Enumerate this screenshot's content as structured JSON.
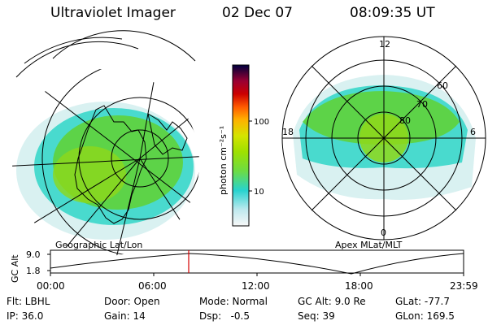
{
  "header": {
    "instrument": "Ultraviolet Imager",
    "date": "02 Dec 07",
    "time": "08:09:35 UT"
  },
  "geo_map": {
    "caption": "Geographic Lat/Lon"
  },
  "polar_map": {
    "caption": "Apex MLat/MLT",
    "mlt_labels": [
      "12",
      "18",
      "6",
      "0"
    ],
    "lat_labels": [
      "60",
      "70",
      "80"
    ]
  },
  "colorbar": {
    "unit_label": "photon cm⁻²s⁻¹",
    "tick_labels": [
      "100",
      "10"
    ],
    "scale": "log",
    "colors": [
      "#f8f8f8",
      "#bfe9ee",
      "#27d3cf",
      "#6cdc44",
      "#9ee000",
      "#d4e400",
      "#ffb100",
      "#ff5a00",
      "#cc0000",
      "#9a0033",
      "#3b0036",
      "#000040"
    ]
  },
  "altitude_plot": {
    "ylabel": "GC Alt",
    "y_ticks": [
      "9.0",
      "1.8"
    ],
    "x_ticks": [
      "00:00",
      "06:00",
      "12:00",
      "18:00",
      "23:59"
    ],
    "current_time_marker": "08:09:35"
  },
  "info": {
    "rows": [
      [
        "Flt: LBHL",
        "Door: Open",
        "Mode: Normal",
        "GC Alt: 9.0 Re",
        "GLat: -77.7"
      ],
      [
        "IP: 36.0",
        "Gain: 14",
        "Dsp:   -0.5",
        "Seq: 39",
        "GLon: 169.5"
      ]
    ]
  },
  "colors": {
    "aurora_green": "#5fd23a",
    "aurora_cyan": "#2fd6c8",
    "marker_red": "#d40000"
  }
}
